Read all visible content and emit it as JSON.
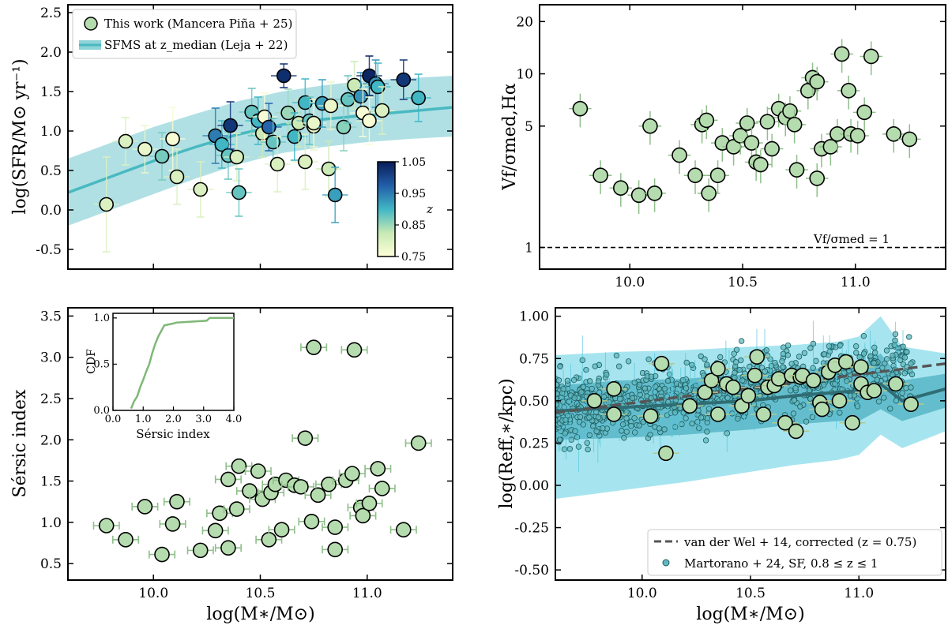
{
  "figure": {
    "shared_xlabel": "log(M∗/M⊙)",
    "xticks": [
      "10.0",
      "10.5",
      "11.0"
    ]
  },
  "chart_data": [
    {
      "id": "sfr",
      "type": "scatter",
      "ylabel": "log(SFR/M⊙ yr⁻¹)",
      "xlim": [
        9.6,
        11.4
      ],
      "ylim": [
        -0.75,
        2.6
      ],
      "yticks": [
        "-0.5",
        "0.0",
        "0.5",
        "1.0",
        "1.5",
        "2.0",
        "2.5"
      ],
      "legend": {
        "points": "This work (Mancera Piña + 25)",
        "band": "SFMS at z_median (Leja + 22)"
      },
      "colorbar": {
        "label": "z",
        "ticks": [
          "1.05",
          "0.95",
          "0.85",
          "0.75"
        ],
        "range": [
          0.75,
          1.05
        ]
      },
      "sfms": {
        "x": [
          9.6,
          9.8,
          10.0,
          10.2,
          10.4,
          10.6,
          10.8,
          11.0,
          11.2,
          11.4
        ],
        "y": [
          0.22,
          0.42,
          0.62,
          0.8,
          0.96,
          1.08,
          1.15,
          1.2,
          1.25,
          1.3
        ],
        "lo": [
          -0.2,
          0.0,
          0.2,
          0.4,
          0.58,
          0.72,
          0.8,
          0.86,
          0.9,
          0.93
        ],
        "hi": [
          0.65,
          0.85,
          1.05,
          1.22,
          1.38,
          1.5,
          1.58,
          1.64,
          1.67,
          1.7
        ]
      },
      "points": [
        {
          "x": 9.78,
          "y": 0.07,
          "z": 0.8,
          "err": 0.6
        },
        {
          "x": 9.87,
          "y": 0.87,
          "z": 0.8,
          "err": 0.3
        },
        {
          "x": 9.96,
          "y": 0.77,
          "z": 0.78,
          "err": 0.3
        },
        {
          "x": 10.04,
          "y": 0.68,
          "z": 0.87,
          "err": 0.3
        },
        {
          "x": 10.09,
          "y": 0.9,
          "z": 0.76,
          "err": 0.4
        },
        {
          "x": 10.11,
          "y": 0.42,
          "z": 0.8,
          "err": 0.35
        },
        {
          "x": 10.22,
          "y": 0.26,
          "z": 0.8,
          "err": 0.35
        },
        {
          "x": 10.29,
          "y": 0.94,
          "z": 0.95,
          "err": 0.35
        },
        {
          "x": 10.32,
          "y": 0.83,
          "z": 0.9,
          "err": 0.3
        },
        {
          "x": 10.35,
          "y": 0.69,
          "z": 0.88,
          "err": 0.3
        },
        {
          "x": 10.36,
          "y": 1.07,
          "z": 1.02,
          "err": 0.3
        },
        {
          "x": 10.39,
          "y": 0.67,
          "z": 0.8,
          "err": 0.3
        },
        {
          "x": 10.4,
          "y": 0.22,
          "z": 0.88,
          "err": 0.3
        },
        {
          "x": 10.46,
          "y": 1.24,
          "z": 0.88,
          "err": 0.3
        },
        {
          "x": 10.49,
          "y": 1.13,
          "z": 0.9,
          "err": 0.3
        },
        {
          "x": 10.51,
          "y": 0.97,
          "z": 0.82,
          "err": 0.3
        },
        {
          "x": 10.52,
          "y": 1.18,
          "z": 0.76,
          "err": 0.3
        },
        {
          "x": 10.54,
          "y": 1.05,
          "z": 0.97,
          "err": 0.3
        },
        {
          "x": 10.56,
          "y": 0.86,
          "z": 0.88,
          "err": 0.3
        },
        {
          "x": 10.58,
          "y": 0.58,
          "z": 0.8,
          "err": 0.35
        },
        {
          "x": 10.61,
          "y": 1.7,
          "z": 1.03,
          "err": 0.15
        },
        {
          "x": 10.63,
          "y": 1.23,
          "z": 0.85,
          "err": 0.3
        },
        {
          "x": 10.66,
          "y": 0.93,
          "z": 0.9,
          "err": 0.3
        },
        {
          "x": 10.68,
          "y": 1.1,
          "z": 0.82,
          "err": 0.3
        },
        {
          "x": 10.71,
          "y": 1.36,
          "z": 0.9,
          "err": 0.3
        },
        {
          "x": 10.71,
          "y": 0.61,
          "z": 0.8,
          "err": 0.35
        },
        {
          "x": 10.73,
          "y": 1.13,
          "z": 0.88,
          "err": 0.3
        },
        {
          "x": 10.75,
          "y": 1.06,
          "z": 0.78,
          "err": 0.3
        },
        {
          "x": 10.75,
          "y": 1.1,
          "z": 0.78,
          "err": 0.3
        },
        {
          "x": 10.79,
          "y": 1.35,
          "z": 0.92,
          "err": 0.3
        },
        {
          "x": 10.82,
          "y": 0.52,
          "z": 0.82,
          "err": 0.35
        },
        {
          "x": 10.83,
          "y": 1.32,
          "z": 0.78,
          "err": 0.3
        },
        {
          "x": 10.85,
          "y": 0.19,
          "z": 0.92,
          "err": 0.35
        },
        {
          "x": 10.89,
          "y": 1.05,
          "z": 0.86,
          "err": 0.3
        },
        {
          "x": 10.91,
          "y": 1.4,
          "z": 0.88,
          "err": 0.3
        },
        {
          "x": 10.94,
          "y": 1.58,
          "z": 0.82,
          "err": 0.3
        },
        {
          "x": 10.97,
          "y": 1.44,
          "z": 0.93,
          "err": 0.3
        },
        {
          "x": 10.98,
          "y": 1.23,
          "z": 0.76,
          "err": 0.3
        },
        {
          "x": 11.01,
          "y": 1.7,
          "z": 1.04,
          "err": 0.25
        },
        {
          "x": 11.01,
          "y": 1.13,
          "z": 0.76,
          "err": 0.3
        },
        {
          "x": 11.04,
          "y": 1.6,
          "z": 0.93,
          "err": 0.3
        },
        {
          "x": 11.05,
          "y": 1.56,
          "z": 0.9,
          "err": 0.3
        },
        {
          "x": 11.07,
          "y": 1.26,
          "z": 0.8,
          "err": 0.3
        },
        {
          "x": 11.17,
          "y": 1.65,
          "z": 1.02,
          "err": 0.25
        },
        {
          "x": 11.24,
          "y": 1.42,
          "z": 0.9,
          "err": 0.3
        }
      ]
    },
    {
      "id": "vsigma",
      "type": "scatter",
      "ylabel": "Vf/σmed,Hα",
      "yscale": "log",
      "xlim": [
        9.6,
        11.4
      ],
      "ylim": [
        0.75,
        25
      ],
      "yticks": [
        "1",
        "5",
        "10",
        "20"
      ],
      "hline_label": "Vf/σmed = 1",
      "points": [
        {
          "x": 9.78,
          "y": 6.3
        },
        {
          "x": 9.87,
          "y": 2.6
        },
        {
          "x": 9.96,
          "y": 2.2
        },
        {
          "x": 10.04,
          "y": 2.0
        },
        {
          "x": 10.09,
          "y": 5.0
        },
        {
          "x": 10.11,
          "y": 2.05
        },
        {
          "x": 10.22,
          "y": 3.4
        },
        {
          "x": 10.29,
          "y": 2.6
        },
        {
          "x": 10.32,
          "y": 5.1
        },
        {
          "x": 10.34,
          "y": 5.4
        },
        {
          "x": 10.35,
          "y": 2.05
        },
        {
          "x": 10.39,
          "y": 2.6
        },
        {
          "x": 10.41,
          "y": 4.0
        },
        {
          "x": 10.46,
          "y": 3.8
        },
        {
          "x": 10.49,
          "y": 4.4
        },
        {
          "x": 10.52,
          "y": 5.2
        },
        {
          "x": 10.54,
          "y": 4.0
        },
        {
          "x": 10.56,
          "y": 3.1
        },
        {
          "x": 10.58,
          "y": 3.0
        },
        {
          "x": 10.61,
          "y": 5.3
        },
        {
          "x": 10.63,
          "y": 3.7
        },
        {
          "x": 10.66,
          "y": 6.3
        },
        {
          "x": 10.69,
          "y": 5.6
        },
        {
          "x": 10.71,
          "y": 6.1
        },
        {
          "x": 10.73,
          "y": 5.1
        },
        {
          "x": 10.74,
          "y": 2.8
        },
        {
          "x": 10.79,
          "y": 8.0
        },
        {
          "x": 10.81,
          "y": 9.5
        },
        {
          "x": 10.83,
          "y": 9.0
        },
        {
          "x": 10.83,
          "y": 2.5
        },
        {
          "x": 10.85,
          "y": 3.7
        },
        {
          "x": 10.89,
          "y": 3.8
        },
        {
          "x": 10.92,
          "y": 4.5
        },
        {
          "x": 10.94,
          "y": 13.0
        },
        {
          "x": 10.97,
          "y": 8.0
        },
        {
          "x": 10.98,
          "y": 4.5
        },
        {
          "x": 11.01,
          "y": 4.4
        },
        {
          "x": 11.04,
          "y": 6.0
        },
        {
          "x": 11.07,
          "y": 12.6
        },
        {
          "x": 11.17,
          "y": 4.5
        },
        {
          "x": 11.24,
          "y": 4.2
        }
      ]
    },
    {
      "id": "sersic",
      "type": "scatter",
      "ylabel": "Sérsic index",
      "xlim": [
        9.6,
        11.4
      ],
      "ylim": [
        0.3,
        3.6
      ],
      "yticks": [
        "0.5",
        "1.0",
        "1.5",
        "2.0",
        "2.5",
        "3.0",
        "3.5"
      ],
      "points": [
        {
          "x": 9.78,
          "y": 0.96
        },
        {
          "x": 9.87,
          "y": 0.79
        },
        {
          "x": 9.96,
          "y": 1.19
        },
        {
          "x": 10.04,
          "y": 0.61
        },
        {
          "x": 10.09,
          "y": 0.98
        },
        {
          "x": 10.11,
          "y": 1.25
        },
        {
          "x": 10.22,
          "y": 0.66
        },
        {
          "x": 10.29,
          "y": 0.9
        },
        {
          "x": 10.31,
          "y": 1.11
        },
        {
          "x": 10.35,
          "y": 1.52
        },
        {
          "x": 10.35,
          "y": 0.69
        },
        {
          "x": 10.39,
          "y": 1.16
        },
        {
          "x": 10.4,
          "y": 1.68
        },
        {
          "x": 10.45,
          "y": 1.38
        },
        {
          "x": 10.49,
          "y": 1.62
        },
        {
          "x": 10.51,
          "y": 1.28
        },
        {
          "x": 10.54,
          "y": 0.79
        },
        {
          "x": 10.55,
          "y": 1.36
        },
        {
          "x": 10.57,
          "y": 1.46
        },
        {
          "x": 10.6,
          "y": 0.91
        },
        {
          "x": 10.62,
          "y": 1.51
        },
        {
          "x": 10.66,
          "y": 1.45
        },
        {
          "x": 10.69,
          "y": 1.43
        },
        {
          "x": 10.71,
          "y": 2.02
        },
        {
          "x": 10.74,
          "y": 1.01
        },
        {
          "x": 10.75,
          "y": 3.12
        },
        {
          "x": 10.77,
          "y": 1.33
        },
        {
          "x": 10.82,
          "y": 1.46
        },
        {
          "x": 10.85,
          "y": 0.94
        },
        {
          "x": 10.85,
          "y": 0.67
        },
        {
          "x": 10.9,
          "y": 1.51
        },
        {
          "x": 10.93,
          "y": 1.59
        },
        {
          "x": 10.94,
          "y": 3.09
        },
        {
          "x": 10.97,
          "y": 1.18
        },
        {
          "x": 10.98,
          "y": 1.08
        },
        {
          "x": 11.01,
          "y": 1.23
        },
        {
          "x": 11.05,
          "y": 1.65
        },
        {
          "x": 11.07,
          "y": 1.41
        },
        {
          "x": 11.17,
          "y": 0.91
        },
        {
          "x": 11.24,
          "y": 1.96
        }
      ],
      "inset": {
        "xlabel": "Sérsic index",
        "ylabel": "CDF",
        "xticks": [
          "0.0",
          "1.0",
          "2.0",
          "3.0",
          "4.0"
        ],
        "yticks": [
          "0.0",
          "0.5",
          "1.0"
        ],
        "x": [
          0.6,
          0.7,
          0.8,
          0.9,
          1.0,
          1.1,
          1.2,
          1.3,
          1.4,
          1.5,
          1.6,
          1.7,
          2.0,
          2.1,
          3.1,
          3.2,
          4.0
        ],
        "y": [
          0.02,
          0.1,
          0.15,
          0.25,
          0.33,
          0.42,
          0.5,
          0.62,
          0.72,
          0.8,
          0.86,
          0.92,
          0.94,
          0.95,
          0.97,
          1.0,
          1.0
        ]
      }
    },
    {
      "id": "reff",
      "type": "scatter",
      "ylabel": "log(Reff,∗/kpc)",
      "xlim": [
        9.6,
        11.4
      ],
      "ylim": [
        -0.56,
        1.05
      ],
      "yticks": [
        "-0.50",
        "-0.25",
        "0.00",
        "0.25",
        "0.50",
        "0.75",
        "1.00"
      ],
      "legend": {
        "line": "van der Wel + 14, corrected (z = 0.75)",
        "points": "Martorano + 24, SF, 0.8 ≤ z ≤ 1"
      },
      "vdw": {
        "x": [
          9.6,
          11.4
        ],
        "y": [
          0.43,
          0.72
        ]
      },
      "median": {
        "x": [
          9.6,
          9.9,
          10.2,
          10.5,
          10.7,
          10.9,
          11.0,
          11.1,
          11.2,
          11.4
        ],
        "y": [
          0.44,
          0.46,
          0.48,
          0.5,
          0.53,
          0.55,
          0.56,
          0.6,
          0.5,
          0.57
        ]
      },
      "band1": {
        "x": [
          9.6,
          9.9,
          10.2,
          10.5,
          10.7,
          10.9,
          11.0,
          11.1,
          11.2,
          11.4
        ],
        "lo": [
          0.27,
          0.28,
          0.3,
          0.33,
          0.36,
          0.38,
          0.38,
          0.45,
          0.38,
          0.46
        ],
        "hi": [
          0.59,
          0.62,
          0.63,
          0.66,
          0.68,
          0.7,
          0.71,
          0.78,
          0.62,
          0.66
        ]
      },
      "band2": {
        "x": [
          9.6,
          9.9,
          10.2,
          10.5,
          10.7,
          10.9,
          11.0,
          11.1,
          11.2,
          11.4
        ],
        "lo": [
          -0.08,
          -0.03,
          0.02,
          0.08,
          0.12,
          0.15,
          0.18,
          0.3,
          0.22,
          0.32
        ],
        "hi": [
          0.77,
          0.79,
          0.8,
          0.82,
          0.83,
          0.85,
          0.88,
          1.0,
          0.82,
          0.78
        ]
      },
      "points": [
        {
          "x": 9.78,
          "y": 0.5
        },
        {
          "x": 9.87,
          "y": 0.42
        },
        {
          "x": 9.87,
          "y": 0.57
        },
        {
          "x": 10.04,
          "y": 0.41
        },
        {
          "x": 10.09,
          "y": 0.72
        },
        {
          "x": 10.11,
          "y": 0.19
        },
        {
          "x": 10.22,
          "y": 0.47
        },
        {
          "x": 10.29,
          "y": 0.55
        },
        {
          "x": 10.32,
          "y": 0.62
        },
        {
          "x": 10.35,
          "y": 0.69
        },
        {
          "x": 10.35,
          "y": 0.42
        },
        {
          "x": 10.39,
          "y": 0.6
        },
        {
          "x": 10.42,
          "y": 0.58
        },
        {
          "x": 10.46,
          "y": 0.47
        },
        {
          "x": 10.49,
          "y": 0.53
        },
        {
          "x": 10.52,
          "y": 0.65
        },
        {
          "x": 10.53,
          "y": 0.76
        },
        {
          "x": 10.56,
          "y": 0.42
        },
        {
          "x": 10.58,
          "y": 0.58
        },
        {
          "x": 10.61,
          "y": 0.59
        },
        {
          "x": 10.63,
          "y": 0.63
        },
        {
          "x": 10.66,
          "y": 0.37
        },
        {
          "x": 10.69,
          "y": 0.65
        },
        {
          "x": 10.71,
          "y": 0.32
        },
        {
          "x": 10.73,
          "y": 0.64
        },
        {
          "x": 10.74,
          "y": 0.65
        },
        {
          "x": 10.79,
          "y": 0.62
        },
        {
          "x": 10.82,
          "y": 0.49
        },
        {
          "x": 10.83,
          "y": 0.45
        },
        {
          "x": 10.86,
          "y": 0.67
        },
        {
          "x": 10.89,
          "y": 0.71
        },
        {
          "x": 10.91,
          "y": 0.5
        },
        {
          "x": 10.94,
          "y": 0.73
        },
        {
          "x": 10.97,
          "y": 0.37
        },
        {
          "x": 11.01,
          "y": 0.7
        },
        {
          "x": 11.01,
          "y": 0.6
        },
        {
          "x": 11.04,
          "y": 0.55
        },
        {
          "x": 11.07,
          "y": 0.56
        },
        {
          "x": 11.17,
          "y": 0.6
        },
        {
          "x": 11.24,
          "y": 0.48
        }
      ]
    }
  ]
}
